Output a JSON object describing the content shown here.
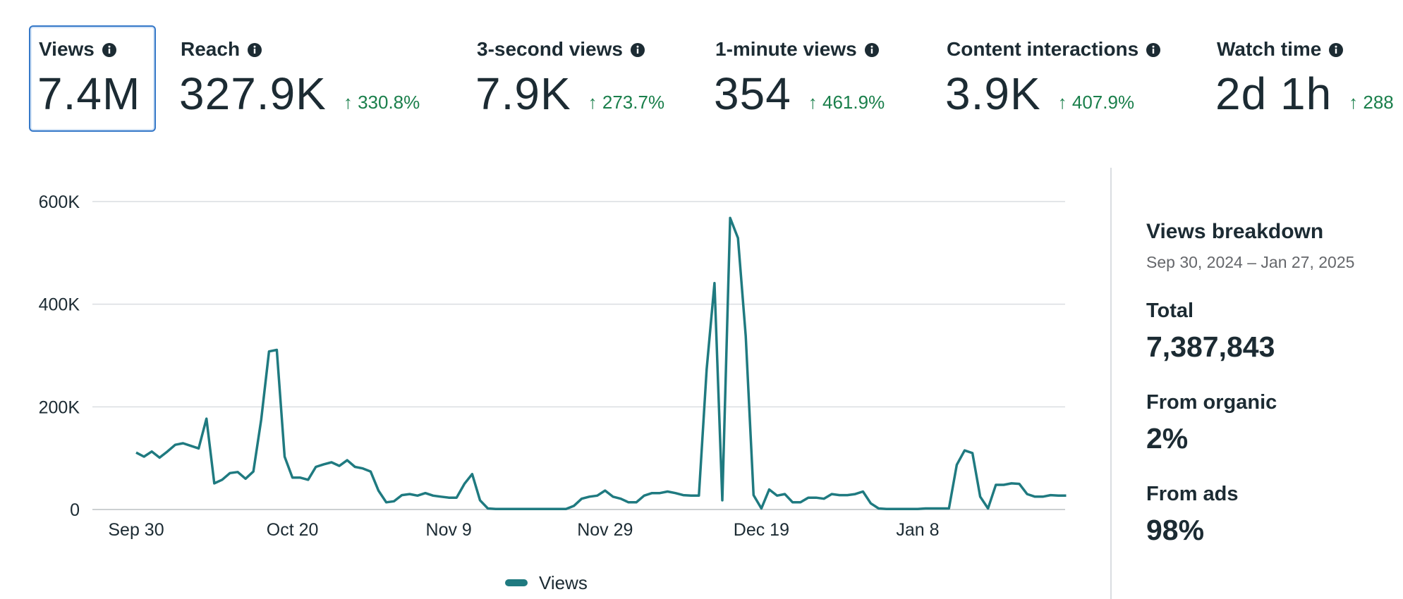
{
  "metrics": [
    {
      "label": "Views",
      "value": "7.4M"
    },
    {
      "label": "Reach",
      "value": "327.9K",
      "change": "↑ 330.8%"
    },
    {
      "label": "3-second views",
      "value": "7.9K",
      "change": "↑ 273.7%"
    },
    {
      "label": "1-minute views",
      "value": "354",
      "change": "↑ 461.9%"
    },
    {
      "label": "Content interactions",
      "value": "3.9K",
      "change": "↑ 407.9%"
    },
    {
      "label": "Watch time",
      "value": "2d 1h",
      "change": "↑ 288"
    }
  ],
  "chart_data": {
    "type": "line",
    "categories": [
      "Sep 30",
      null,
      null,
      null,
      null,
      null,
      null,
      null,
      null,
      null,
      null,
      null,
      null,
      null,
      null,
      null,
      null,
      null,
      null,
      null,
      "Oct 20",
      null,
      null,
      null,
      null,
      null,
      null,
      null,
      null,
      null,
      null,
      null,
      null,
      null,
      null,
      null,
      null,
      null,
      null,
      null,
      "Nov 9",
      null,
      null,
      null,
      null,
      null,
      null,
      null,
      null,
      null,
      null,
      null,
      null,
      null,
      null,
      null,
      null,
      null,
      null,
      null,
      "Nov 29",
      null,
      null,
      null,
      null,
      null,
      null,
      null,
      null,
      null,
      null,
      null,
      null,
      null,
      null,
      null,
      null,
      null,
      null,
      null,
      "Dec 19",
      null,
      null,
      null,
      null,
      null,
      null,
      null,
      null,
      null,
      null,
      null,
      null,
      null,
      null,
      null,
      null,
      null,
      null,
      null,
      "Jan 8",
      null,
      null,
      null,
      null,
      null,
      null,
      null,
      null,
      null,
      null,
      null,
      null,
      null,
      null,
      null,
      null,
      null,
      null,
      null
    ],
    "series": [
      {
        "name": "Views",
        "color": "#1f7a80",
        "values": [
          111000,
          103000,
          113000,
          101000,
          113000,
          126000,
          129000,
          124000,
          119000,
          177000,
          51000,
          58000,
          71000,
          73000,
          60000,
          74000,
          175000,
          308000,
          311000,
          103000,
          62000,
          62000,
          58000,
          83000,
          88000,
          92000,
          85000,
          96000,
          83000,
          80000,
          74000,
          37000,
          14000,
          16000,
          28000,
          30000,
          27000,
          32000,
          27000,
          25000,
          23000,
          23000,
          50000,
          69000,
          18000,
          2000,
          1000,
          1000,
          1000,
          1000,
          1000,
          1000,
          1000,
          1000,
          1000,
          1000,
          7000,
          21000,
          25000,
          27000,
          37000,
          25000,
          21000,
          14000,
          14000,
          27000,
          32000,
          32000,
          35000,
          32000,
          28000,
          27000,
          27000,
          273000,
          441000,
          18000,
          568000,
          529000,
          338000,
          28000,
          2000,
          39000,
          27000,
          30000,
          14000,
          14000,
          23000,
          23000,
          21000,
          30000,
          28000,
          28000,
          30000,
          35000,
          12000,
          2000,
          1000,
          1000,
          1000,
          1000,
          1000,
          2000,
          2000,
          2000,
          2000,
          87000,
          115000,
          110000,
          25000,
          2000,
          48000,
          48000,
          51000,
          50000,
          30000,
          25000,
          25000,
          28000,
          27000,
          27000
        ]
      }
    ],
    "ylim": [
      0,
      600000
    ],
    "yticks": [
      {
        "value": 0,
        "label": "0"
      },
      {
        "value": 200000,
        "label": "200K"
      },
      {
        "value": 400000,
        "label": "400K"
      },
      {
        "value": 600000,
        "label": "600K"
      }
    ],
    "grid": true,
    "legend": "bottom"
  },
  "breakdown": {
    "title": "Views breakdown",
    "date_range": "Sep 30, 2024 – Jan 27, 2025",
    "items": [
      {
        "label": "Total",
        "value": "7,387,843"
      },
      {
        "label": "From organic",
        "value": "2%"
      },
      {
        "label": "From ads",
        "value": "98%"
      }
    ]
  }
}
